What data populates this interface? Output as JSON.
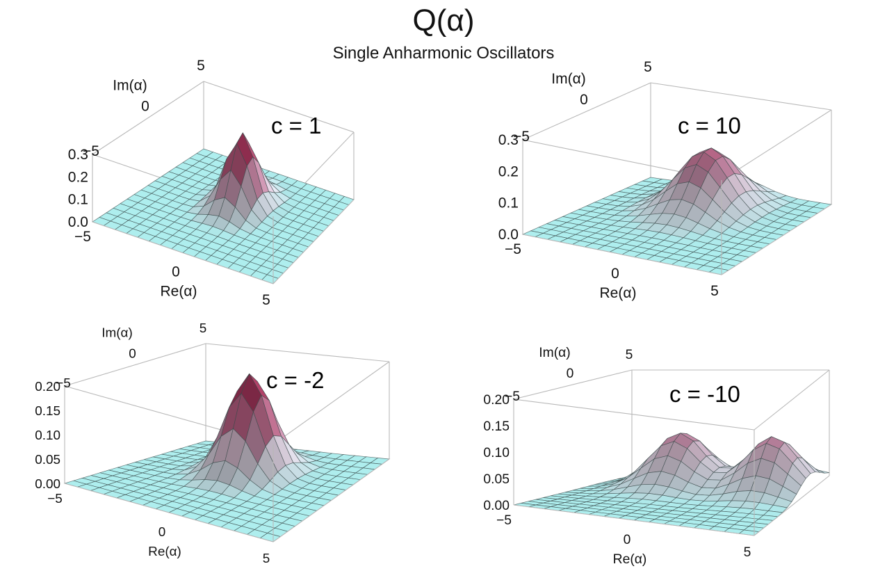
{
  "figure": {
    "title": "Q(α)",
    "subtitle": "Single Anharmonic Oscillators"
  },
  "chart_data": [
    {
      "type": "surface3d",
      "annotation": "c = 1",
      "xlabel": "Re(α)",
      "ylabel": "Im(α)",
      "xlim": [
        -5,
        5
      ],
      "ylim": [
        -5,
        5
      ],
      "zlim": [
        0,
        0.3
      ],
      "x_ticks": [
        "-5",
        "0",
        "5"
      ],
      "y_ticks": [
        "-5",
        "0",
        "5"
      ],
      "z_ticks": [
        "0.0",
        "0.1",
        "0.2",
        "0.3"
      ],
      "peaks": [
        {
          "re": 0,
          "im": 1.1,
          "height": 0.318,
          "sigma_re": 0.75,
          "sigma_im": 1.1
        }
      ],
      "colors": {
        "low": "#aeeeee",
        "high": "#cc3366"
      }
    },
    {
      "type": "surface3d",
      "annotation": "c = 10",
      "xlabel": "Re(α)",
      "ylabel": "Im(α)",
      "xlim": [
        -5,
        5
      ],
      "ylim": [
        -5,
        5
      ],
      "zlim": [
        0,
        0.3
      ],
      "x_ticks": [
        "-5",
        "0",
        "5"
      ],
      "y_ticks": [
        "-5",
        "0",
        "5"
      ],
      "z_ticks": [
        "0.0",
        "0.1",
        "0.2",
        "0.3"
      ],
      "peaks": [
        {
          "re": 0,
          "im": 2.2,
          "height": 0.19,
          "sigma_re": 1.3,
          "sigma_im": 1.6
        }
      ],
      "colors": {
        "low": "#aeeeee",
        "high": "#cc3366"
      }
    },
    {
      "type": "surface3d",
      "annotation": "c = -2",
      "xlabel": "Re(α)",
      "ylabel": "Im(α)",
      "xlim": [
        -5,
        5
      ],
      "ylim": [
        -5,
        5
      ],
      "zlim": [
        0,
        0.2
      ],
      "x_ticks": [
        "-5",
        "0",
        "5"
      ],
      "y_ticks": [
        "-5",
        "0",
        "5"
      ],
      "z_ticks": [
        "0.00",
        "0.05",
        "0.10",
        "0.15",
        "0.20"
      ],
      "peaks": [
        {
          "re": 0,
          "im": 1.3,
          "height": 0.205,
          "sigma_re": 0.95,
          "sigma_im": 1.15
        }
      ],
      "colors": {
        "low": "#aeeeee",
        "high": "#cc3366"
      }
    },
    {
      "type": "surface3d",
      "annotation": "c = -10",
      "xlabel": "Re(α)",
      "ylabel": "Im(α)",
      "xlim": [
        -5,
        5
      ],
      "ylim": [
        -5,
        5
      ],
      "zlim": [
        0,
        0.2
      ],
      "x_ticks": [
        "-5",
        "0",
        "5"
      ],
      "y_ticks": [
        "-5",
        "0",
        "5"
      ],
      "z_ticks": [
        "0.00",
        "0.05",
        "0.10",
        "0.15",
        "0.20"
      ],
      "peaks": [
        {
          "re": -1.3,
          "im": 2.6,
          "height": 0.1,
          "sigma_re": 1.2,
          "sigma_im": 1.5
        },
        {
          "re": 3.2,
          "im": 2.4,
          "height": 0.1,
          "sigma_re": 1.2,
          "sigma_im": 1.4
        }
      ],
      "colors": {
        "low": "#aeeeee",
        "high": "#cc3366"
      }
    }
  ]
}
